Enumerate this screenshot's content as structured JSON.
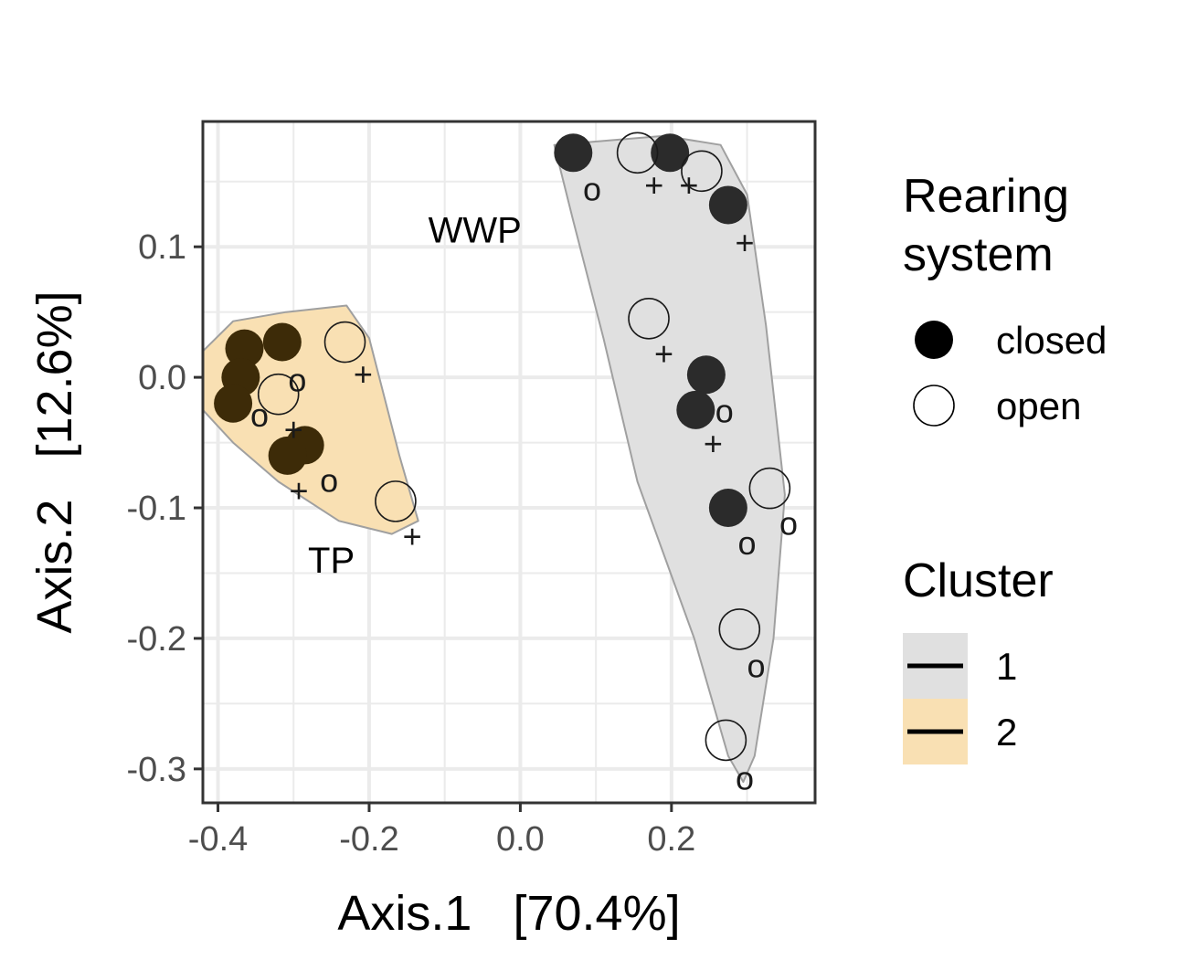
{
  "chart_data": {
    "type": "scatter",
    "xlabel": "Axis.1   [70.4%]",
    "ylabel": "Axis.2   [12.6%]",
    "xlim": [
      -0.42,
      0.39
    ],
    "ylim": [
      -0.326,
      0.196
    ],
    "x_ticks": [
      -0.4,
      -0.2,
      0.0,
      0.2
    ],
    "x_tick_labels": [
      "-0.4",
      "-0.2",
      "0.0",
      "0.2"
    ],
    "y_ticks": [
      -0.3,
      -0.2,
      -0.1,
      0.0,
      0.1
    ],
    "y_tick_labels": [
      "-0.3",
      "-0.2",
      "-0.1",
      "0.0",
      "0.1"
    ],
    "grid": true,
    "legend_position": "right",
    "annotations": [
      {
        "text": "WWP",
        "x": -0.06,
        "y": 0.113
      },
      {
        "text": "TP",
        "x": -0.25,
        "y": -0.14
      }
    ],
    "legends": [
      {
        "title": "Rearing\nsystem",
        "entries": [
          {
            "label": "closed",
            "shape": "filled-circle",
            "color": "#000000"
          },
          {
            "label": "open",
            "shape": "open-circle",
            "color": "#000000"
          }
        ]
      },
      {
        "title": "Cluster",
        "entries": [
          {
            "label": "1",
            "fill": "#e0e0e0"
          },
          {
            "label": "2",
            "fill": "#f9e0b3"
          }
        ]
      }
    ],
    "clusters": [
      {
        "name": "1",
        "fill": "#e0e0e0",
        "stroke": "#a0a0a0",
        "hull": [
          [
            0.045,
            0.178
          ],
          [
            0.19,
            0.185
          ],
          [
            0.265,
            0.178
          ],
          [
            0.3,
            0.14
          ],
          [
            0.325,
            0.04
          ],
          [
            0.35,
            -0.09
          ],
          [
            0.335,
            -0.2
          ],
          [
            0.31,
            -0.29
          ],
          [
            0.295,
            -0.31
          ],
          [
            0.275,
            -0.29
          ],
          [
            0.23,
            -0.2
          ],
          [
            0.155,
            -0.08
          ],
          [
            0.11,
            0.03
          ],
          [
            0.07,
            0.12
          ]
        ]
      },
      {
        "name": "2",
        "fill": "#f9e0b3",
        "stroke": "#a0a0a0",
        "hull": [
          [
            -0.42,
            0.02
          ],
          [
            -0.38,
            0.043
          ],
          [
            -0.31,
            0.05
          ],
          [
            -0.23,
            0.055
          ],
          [
            -0.2,
            0.03
          ],
          [
            -0.16,
            -0.06
          ],
          [
            -0.135,
            -0.11
          ],
          [
            -0.17,
            -0.12
          ],
          [
            -0.24,
            -0.11
          ],
          [
            -0.32,
            -0.08
          ],
          [
            -0.38,
            -0.05
          ],
          [
            -0.42,
            -0.025
          ]
        ]
      }
    ],
    "series": [
      {
        "name": "closed",
        "marker": "filled-circle",
        "cluster_colors": {
          "1": "#2b2b2b",
          "2": "#3d2b08"
        },
        "points": [
          {
            "x": 0.07,
            "y": 0.172,
            "cluster": "1"
          },
          {
            "x": 0.198,
            "y": 0.172,
            "cluster": "1"
          },
          {
            "x": 0.275,
            "y": 0.132,
            "cluster": "1"
          },
          {
            "x": 0.246,
            "y": 0.002,
            "cluster": "1"
          },
          {
            "x": 0.232,
            "y": -0.025,
            "cluster": "1"
          },
          {
            "x": 0.275,
            "y": -0.1,
            "cluster": "1"
          },
          {
            "x": -0.365,
            "y": 0.022,
            "cluster": "2"
          },
          {
            "x": -0.315,
            "y": 0.027,
            "cluster": "2"
          },
          {
            "x": -0.37,
            "y": 0.0,
            "cluster": "2"
          },
          {
            "x": -0.38,
            "y": -0.02,
            "cluster": "2"
          },
          {
            "x": -0.285,
            "y": -0.052,
            "cluster": "2"
          },
          {
            "x": -0.308,
            "y": -0.06,
            "cluster": "2"
          }
        ]
      },
      {
        "name": "open",
        "marker": "open-circle",
        "points": [
          {
            "x": 0.155,
            "y": 0.172
          },
          {
            "x": 0.24,
            "y": 0.158
          },
          {
            "x": 0.17,
            "y": 0.045
          },
          {
            "x": 0.33,
            "y": -0.085
          },
          {
            "x": 0.29,
            "y": -0.193
          },
          {
            "x": 0.272,
            "y": -0.278
          },
          {
            "x": -0.232,
            "y": 0.027
          },
          {
            "x": -0.32,
            "y": -0.013
          },
          {
            "x": -0.165,
            "y": -0.095
          }
        ]
      },
      {
        "name": "o",
        "marker": "text-o",
        "points": [
          {
            "x": 0.095,
            "y": 0.143
          },
          {
            "x": 0.27,
            "y": -0.027
          },
          {
            "x": 0.3,
            "y": -0.128
          },
          {
            "x": 0.355,
            "y": -0.113
          },
          {
            "x": 0.312,
            "y": -0.222
          },
          {
            "x": 0.297,
            "y": -0.308
          },
          {
            "x": -0.295,
            "y": -0.003
          },
          {
            "x": -0.345,
            "y": -0.03
          },
          {
            "x": -0.253,
            "y": -0.08
          }
        ]
      },
      {
        "name": "+",
        "marker": "text-plus",
        "points": [
          {
            "x": 0.177,
            "y": 0.147
          },
          {
            "x": 0.223,
            "y": 0.147
          },
          {
            "x": 0.297,
            "y": 0.103
          },
          {
            "x": 0.19,
            "y": 0.018
          },
          {
            "x": 0.255,
            "y": -0.051
          },
          {
            "x": -0.208,
            "y": 0.002
          },
          {
            "x": -0.3,
            "y": -0.04
          },
          {
            "x": -0.293,
            "y": -0.087
          },
          {
            "x": -0.143,
            "y": -0.122
          }
        ]
      }
    ]
  }
}
